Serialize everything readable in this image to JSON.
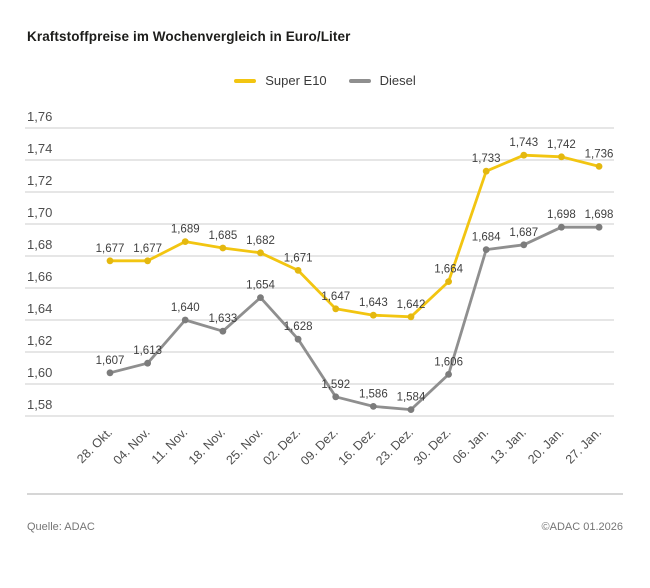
{
  "title": "Kraftstoffpreise im Wochenvergleich in Euro/Liter",
  "legend": {
    "items": [
      {
        "label": "Super E10",
        "color": "#F2C511"
      },
      {
        "label": "Diesel",
        "color": "#8F8F8F"
      }
    ]
  },
  "chart_data": {
    "type": "line",
    "categories": [
      "28. Okt.",
      "04. Nov.",
      "11. Nov.",
      "18. Nov.",
      "25. Nov.",
      "02. Dez.",
      "09. Dez.",
      "16. Dez.",
      "23. Dez.",
      "30. Dez.",
      "06. Jan.",
      "13. Jan.",
      "20. Jan.",
      "27. Jan."
    ],
    "series": [
      {
        "name": "Super E10",
        "color": "#F2C511",
        "marker_color": "#E4B80F",
        "values": [
          1.677,
          1.677,
          1.689,
          1.685,
          1.682,
          1.671,
          1.647,
          1.643,
          1.642,
          1.664,
          1.733,
          1.743,
          1.742,
          1.736
        ]
      },
      {
        "name": "Diesel",
        "color": "#8F8F8F",
        "marker_color": "#7C7C7C",
        "values": [
          1.607,
          1.613,
          1.64,
          1.633,
          1.654,
          1.628,
          1.592,
          1.586,
          1.584,
          1.606,
          1.684,
          1.687,
          1.698,
          1.698
        ]
      }
    ],
    "title": "Kraftstoffpreise im Wochenvergleich in Euro/Liter",
    "xlabel": "",
    "ylabel": "",
    "ylim": [
      1.58,
      1.76
    ],
    "ytick_step": 0.02,
    "decimal_separator": ",",
    "grid": true,
    "legend_position": "top-center",
    "data_labels": true
  },
  "footer": {
    "source": "Quelle: ADAC",
    "copyright": "©ADAC 01.2026"
  },
  "colors": {
    "accent_yellow": "#F2C511",
    "series_gray": "#8F8F8F",
    "gridline": "#D8D8D8",
    "title_text": "#1D1D1B",
    "tick_label": "#4D4D4D",
    "data_label": "#3F3F3F",
    "footer_text": "#757575"
  }
}
